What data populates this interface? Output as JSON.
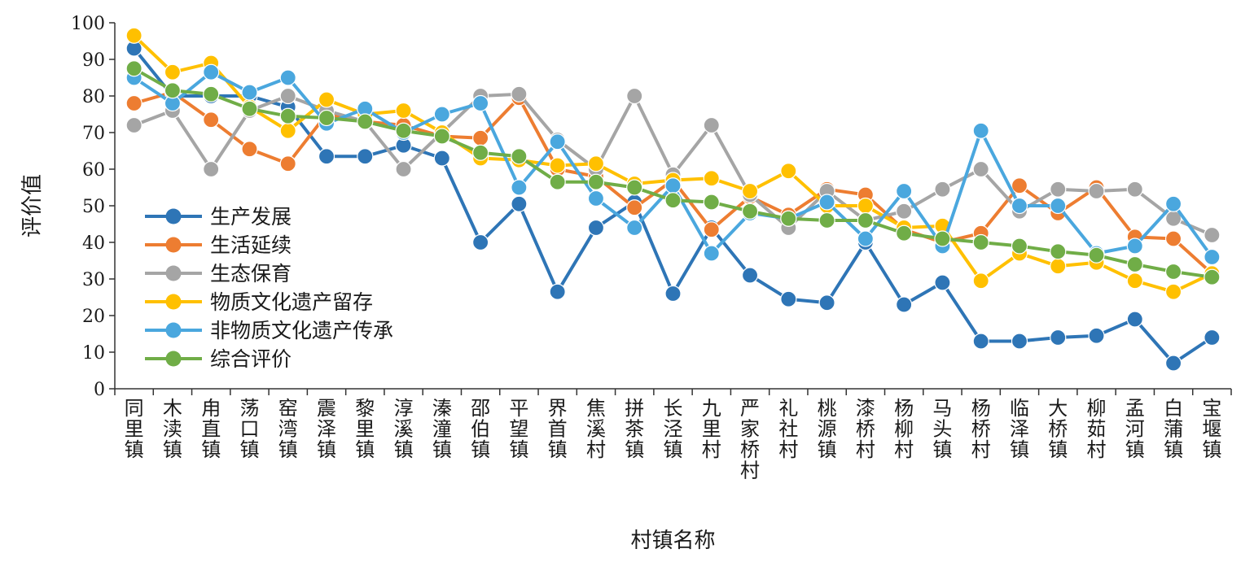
{
  "chart_data": {
    "type": "line",
    "title": "",
    "xlabel": "村镇名称",
    "ylabel": "评价值",
    "ylim": [
      0,
      100
    ],
    "yticks": [
      0,
      10,
      20,
      30,
      40,
      50,
      60,
      70,
      80,
      90,
      100
    ],
    "grid": false,
    "legend_position": "lower-left",
    "categories": [
      "同里镇",
      "木渎镇",
      "甪直镇",
      "荡口镇",
      "窑湾镇",
      "震泽镇",
      "黎里镇",
      "淳溪镇",
      "溱潼镇",
      "邵伯镇",
      "平望镇",
      "界首镇",
      "焦溪村",
      "拼茶镇",
      "长泾镇",
      "九里村",
      "严家桥村",
      "礼社村",
      "桃源镇",
      "漆桥村",
      "杨柳村",
      "马头镇",
      "杨桥村",
      "临泽镇",
      "大桥镇",
      "柳茹村",
      "孟河镇",
      "白蒲镇",
      "宝堰镇"
    ],
    "series": [
      {
        "name": "生产发展",
        "color": "#2e75b6",
        "values": [
          93,
          80,
          80,
          80,
          77,
          63.5,
          63.5,
          66.5,
          63,
          40,
          50.5,
          26.5,
          44,
          51,
          26,
          44,
          31,
          24.5,
          23.5,
          40,
          23,
          29,
          13,
          13,
          14,
          14.5,
          19,
          7,
          14
        ]
      },
      {
        "name": "生活延续",
        "color": "#ed7d31",
        "values": [
          78,
          81,
          73.5,
          65.5,
          61.5,
          75,
          73,
          72,
          69,
          68.5,
          79.5,
          60,
          58,
          49.5,
          57,
          43.5,
          52.5,
          47.5,
          54.5,
          53,
          43.5,
          40,
          42.5,
          55.5,
          48,
          55,
          41.5,
          41,
          31.5
        ]
      },
      {
        "name": "生态保育",
        "color": "#a5a5a5",
        "values": [
          72,
          76,
          60,
          76,
          80,
          76,
          73,
          60,
          70,
          80,
          80.5,
          68,
          60,
          80,
          58.5,
          72,
          53,
          44,
          54,
          46,
          48.5,
          54.5,
          60,
          48.5,
          54.5,
          54,
          54.5,
          46.5,
          42
        ]
      },
      {
        "name": "物质文化遗产留存",
        "color": "#ffc000",
        "values": [
          96.5,
          86.5,
          89,
          77,
          70.5,
          79,
          75,
          76,
          70,
          63,
          62.5,
          61,
          61.5,
          56,
          57,
          57.5,
          54,
          59.5,
          50,
          50,
          44,
          44.5,
          29.5,
          37,
          33.5,
          34.5,
          29.5,
          26.5,
          31.5
        ]
      },
      {
        "name": "非物质文化遗产传承",
        "color": "#4aa7de",
        "values": [
          85,
          78,
          86.5,
          81,
          85,
          72.5,
          76.5,
          70,
          75,
          78,
          55,
          67.5,
          52,
          44,
          55.5,
          37,
          48,
          46.5,
          51,
          41,
          54,
          39,
          70.5,
          50,
          50,
          37,
          39,
          50.5,
          36
        ]
      },
      {
        "name": "综合评价",
        "color": "#70ad47",
        "values": [
          87.5,
          81.5,
          80.5,
          76.5,
          74.5,
          74,
          73,
          70.5,
          69,
          64.5,
          63.5,
          56.5,
          56.5,
          55,
          51.5,
          51,
          48.5,
          46.5,
          46,
          46,
          42.5,
          41,
          40,
          39,
          37.5,
          36.5,
          34,
          32,
          30.5
        ]
      }
    ]
  }
}
